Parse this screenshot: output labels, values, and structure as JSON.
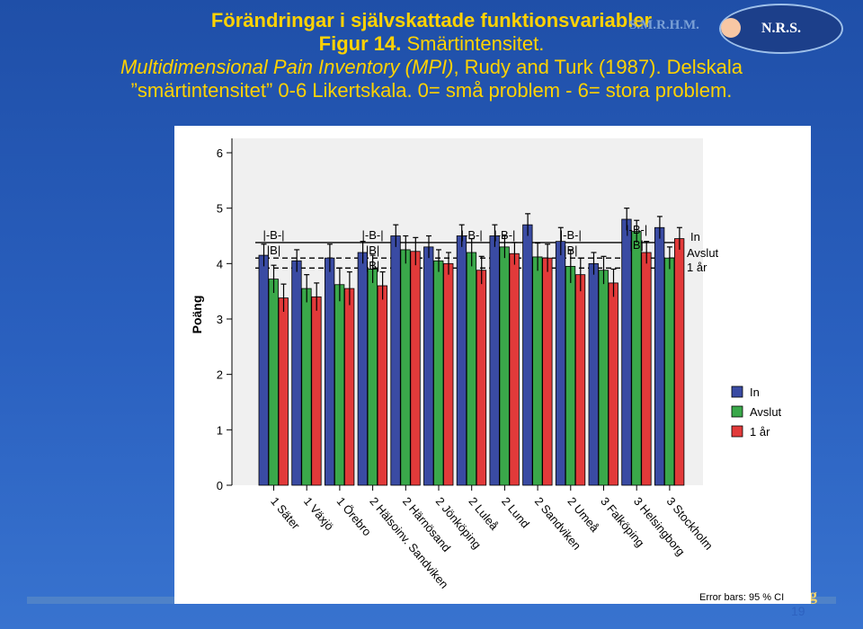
{
  "slide": {
    "title_line1": "Förändringar i självskattade funktionsvariabler",
    "title_line2_bold": "Figur 14.",
    "title_line2_rest": " Smärtintensitet.",
    "title_line3_italic": "Multidimensional Pain Inventory (MPI)",
    "title_line3_rest": ", Rudy and Turk (1987). Delskala",
    "title_line4": "”smärtintensitet” 0-6 Likertskala. 0= små problem - 6= stora problem.",
    "logo_text": "S.M.R.H.M.",
    "badge_text": "N.R.S.",
    "corner_text": "ng",
    "page_number": "19"
  },
  "chart_data": {
    "type": "bar",
    "ylabel": "Poäng",
    "ylim": [
      0,
      6
    ],
    "yticks": [
      0,
      1,
      2,
      3,
      4,
      5,
      6
    ],
    "categories": [
      "1 Säter",
      "1 Växjö",
      "1 Örebro",
      "2 Hälsoinv. Sandviken",
      "2 Härnösand",
      "2 Jönköping",
      "2 Luleå",
      "2 Lund",
      "2 Sandviken",
      "2 Umeå",
      "3 Falköping",
      "3 Helsingborg",
      "3 Stockholm"
    ],
    "series": [
      {
        "name": "In",
        "color": "#3a4ba3",
        "values": [
          4.15,
          4.05,
          4.1,
          4.2,
          4.5,
          4.3,
          4.5,
          4.5,
          4.7,
          4.4,
          4.0,
          4.8,
          4.65
        ],
        "err": [
          0.2,
          0.2,
          0.25,
          0.2,
          0.2,
          0.2,
          0.2,
          0.2,
          0.2,
          0.25,
          0.2,
          0.2,
          0.2
        ]
      },
      {
        "name": "Avslut",
        "color": "#3aa84a",
        "values": [
          3.72,
          3.55,
          3.62,
          3.9,
          4.25,
          4.05,
          4.2,
          4.3,
          4.12,
          3.95,
          3.88,
          4.58,
          4.1
        ],
        "err": [
          0.25,
          0.25,
          0.3,
          0.25,
          0.25,
          0.2,
          0.25,
          0.2,
          0.25,
          0.3,
          0.25,
          0.2,
          0.2
        ]
      },
      {
        "name": "1 år",
        "color": "#e23a3a",
        "values": [
          3.38,
          3.4,
          3.55,
          3.6,
          4.22,
          4.0,
          3.88,
          4.18,
          4.1,
          3.8,
          3.65,
          4.2,
          4.45
        ],
        "err": [
          0.25,
          0.25,
          0.3,
          0.25,
          0.25,
          0.2,
          0.25,
          0.2,
          0.25,
          0.3,
          0.25,
          0.2,
          0.2
        ]
      }
    ],
    "reference_lines": [
      {
        "name": "In",
        "value": 4.38,
        "style": "solid"
      },
      {
        "name": "Avslut",
        "value": 4.1,
        "style": "dashed"
      },
      {
        "name": "1 år",
        "value": 3.92,
        "style": "dashed"
      }
    ],
    "reference_labels": [
      "In",
      "Avslut",
      "1 år"
    ],
    "annotations": [
      {
        "text": "|-B-|",
        "category": 0
      },
      {
        "text": "|B|",
        "category": 0
      },
      {
        "text": "|-B-|",
        "category": 3
      },
      {
        "text": "|B|",
        "category": 3
      },
      {
        "text": "|B|",
        "category": 3
      },
      {
        "text": "|-B-|",
        "category": 6
      },
      {
        "text": "|-B-|",
        "category": 7
      },
      {
        "text": "|-B-|",
        "category": 9
      },
      {
        "text": "|B|",
        "category": 9
      },
      {
        "text": "|-B-|",
        "category": 11
      },
      {
        "text": "|B|",
        "category": 11
      }
    ],
    "legend": {
      "placement": "right",
      "entries": [
        "In",
        "Avslut",
        "1 år"
      ]
    },
    "footnote": "Error bars: 95 % CI"
  }
}
